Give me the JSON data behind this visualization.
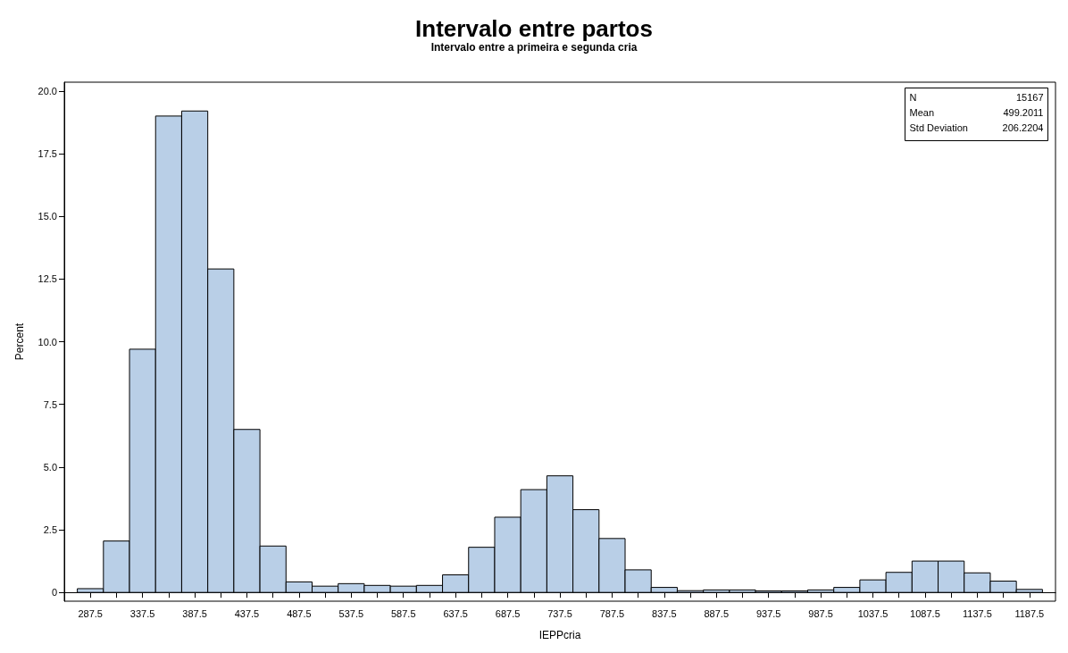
{
  "chart_data": {
    "type": "histogram",
    "title": "Intervalo entre partos",
    "subtitle": "Intervalo entre a primeira e segunda cria",
    "xlabel": "IEPPcria",
    "ylabel": "Percent",
    "color": "#b9cfe7",
    "bins": [
      275,
      300,
      325,
      350,
      375,
      400,
      425,
      450,
      475,
      500,
      525,
      550,
      575,
      600,
      625,
      650,
      675,
      700,
      725,
      750,
      775,
      800,
      825,
      850,
      875,
      900,
      925,
      950,
      975,
      1000,
      1025,
      1050,
      1075,
      1100,
      1125,
      1150,
      1175,
      1200
    ],
    "values": [
      0.15,
      2.05,
      9.7,
      19.0,
      19.2,
      12.9,
      6.5,
      1.85,
      0.42,
      0.25,
      0.35,
      0.28,
      0.25,
      0.28,
      0.7,
      1.8,
      3.0,
      4.1,
      4.65,
      3.3,
      2.15,
      0.9,
      0.2,
      0.07,
      0.1,
      0.1,
      0.06,
      0.06,
      0.1,
      0.2,
      0.5,
      0.8,
      1.25,
      1.25,
      0.78,
      0.45,
      0.12
    ],
    "xlim": [
      262.5,
      1212.5
    ],
    "xticks": [
      287.5,
      {
        "value": 312.5,
        "label": null
      },
      337.5,
      {
        "value": 362.5,
        "label": null
      },
      387.5,
      {
        "value": 412.5,
        "label": null
      },
      437.5,
      {
        "value": 462.5,
        "label": null
      },
      487.5,
      {
        "value": 512.5,
        "label": null
      },
      537.5,
      {
        "value": 562.5,
        "label": null
      },
      587.5,
      {
        "value": 612.5,
        "label": null
      },
      637.5,
      {
        "value": 662.5,
        "label": null
      },
      687.5,
      {
        "value": 712.5,
        "label": null
      },
      737.5,
      {
        "value": 762.5,
        "label": null
      },
      787.5,
      {
        "value": 812.5,
        "label": null
      },
      837.5,
      {
        "value": 862.5,
        "label": null
      },
      887.5,
      {
        "value": 912.5,
        "label": null
      },
      937.5,
      {
        "value": 962.5,
        "label": null
      },
      987.5,
      {
        "value": 1012.5,
        "label": null
      },
      1037.5,
      {
        "value": 1062.5,
        "label": null
      },
      1087.5,
      {
        "value": 1112.5,
        "label": null
      },
      1137.5,
      {
        "value": 1162.5,
        "label": null
      },
      1187.5
    ],
    "ylim": [
      -0.35,
      20.35
    ],
    "yticks": [
      0,
      2.5,
      {
        "value": 5,
        "label": "5.0"
      },
      7.5,
      {
        "value": 10,
        "label": "10.0"
      },
      12.5,
      {
        "value": 15,
        "label": "15.0"
      },
      17.5,
      {
        "value": 20,
        "label": "20.0"
      }
    ],
    "annotations": [
      "N",
      "15167",
      "Mean",
      "499.2011",
      "Std Deviation",
      "206.2204"
    ]
  }
}
